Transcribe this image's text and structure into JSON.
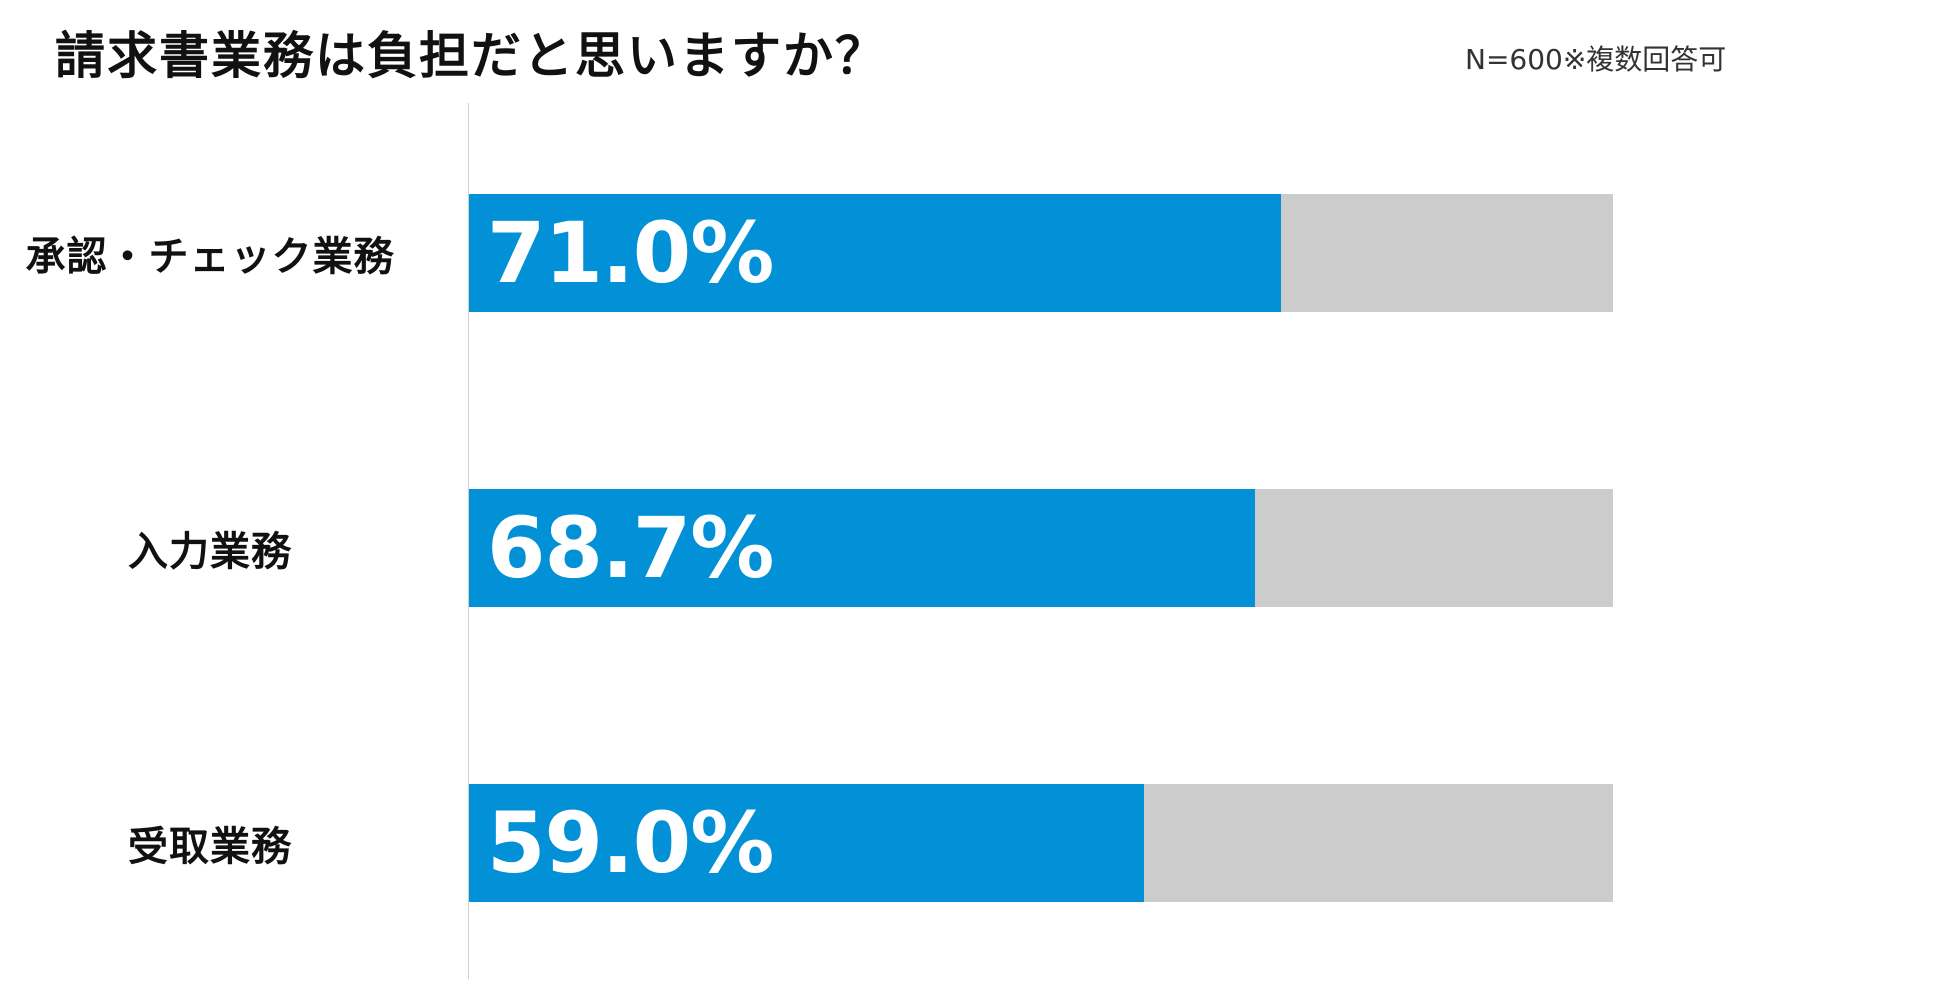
{
  "chart_data": {
    "type": "bar",
    "orientation": "horizontal",
    "title": "請求書業務は負担だと思いますか？",
    "note": "N=600※複数回答可",
    "categories": [
      "承認・チェック業務",
      "入力業務",
      "受取業務"
    ],
    "values": [
      71.0,
      68.7,
      59.0
    ],
    "value_labels": [
      "71.0%",
      "68.7%",
      "59.0%"
    ],
    "xlim": [
      0,
      100
    ],
    "unit": "%",
    "grid": false,
    "legend": "none",
    "colors": {
      "bar": "#0290d6",
      "track": "#cccccc",
      "value_text": "#ffffff"
    }
  }
}
